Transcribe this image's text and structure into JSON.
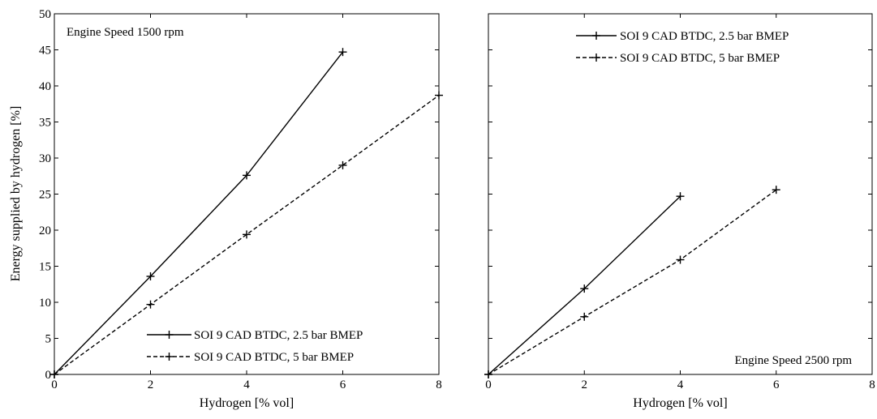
{
  "figure": {
    "ylabel": "Energy supplied by hydrogen [%]",
    "ylim": [
      0,
      50
    ],
    "yticks": [
      0,
      5,
      10,
      15,
      20,
      25,
      30,
      35,
      40,
      45,
      50
    ]
  },
  "chart_data": [
    {
      "type": "line",
      "title": "",
      "annotation": "Engine Speed 1500 rpm",
      "xlabel": "Hydrogen [% vol]",
      "ylabel": "Energy supplied by hydrogen [%]",
      "xlim": [
        0,
        8
      ],
      "ylim": [
        0,
        50
      ],
      "xticks": [
        0,
        2,
        4,
        6,
        8
      ],
      "yticks": [
        0,
        5,
        10,
        15,
        20,
        25,
        30,
        35,
        40,
        45,
        50
      ],
      "grid": false,
      "legend_position": "bottom-right",
      "series": [
        {
          "name": "SOI 9 CAD BTDC, 2.5 bar BMEP",
          "style": "solid",
          "marker": "+",
          "x": [
            0,
            2,
            4,
            6
          ],
          "y": [
            0,
            13.6,
            27.6,
            44.7
          ]
        },
        {
          "name": "SOI 9 CAD BTDC, 5 bar BMEP",
          "style": "dashed",
          "marker": "+",
          "x": [
            0,
            2,
            4,
            6,
            8
          ],
          "y": [
            0,
            9.7,
            19.4,
            29.0,
            38.7
          ]
        }
      ]
    },
    {
      "type": "line",
      "title": "",
      "annotation": "Engine Speed 2500 rpm",
      "xlabel": "Hydrogen [% vol]",
      "ylabel": "",
      "xlim": [
        0,
        8
      ],
      "ylim": [
        0,
        50
      ],
      "xticks": [
        0,
        2,
        4,
        6,
        8
      ],
      "yticks": [
        0,
        5,
        10,
        15,
        20,
        25,
        30,
        35,
        40,
        45,
        50
      ],
      "grid": false,
      "legend_position": "top-right",
      "series": [
        {
          "name": "SOI 9 CAD BTDC, 2.5 bar BMEP",
          "style": "solid",
          "marker": "+",
          "x": [
            0,
            2,
            4
          ],
          "y": [
            0,
            11.9,
            24.7
          ]
        },
        {
          "name": "SOI 9 CAD BTDC, 5 bar BMEP",
          "style": "dashed",
          "marker": "+",
          "x": [
            0,
            2,
            4,
            6
          ],
          "y": [
            0,
            8.0,
            15.9,
            25.6
          ]
        }
      ]
    }
  ]
}
